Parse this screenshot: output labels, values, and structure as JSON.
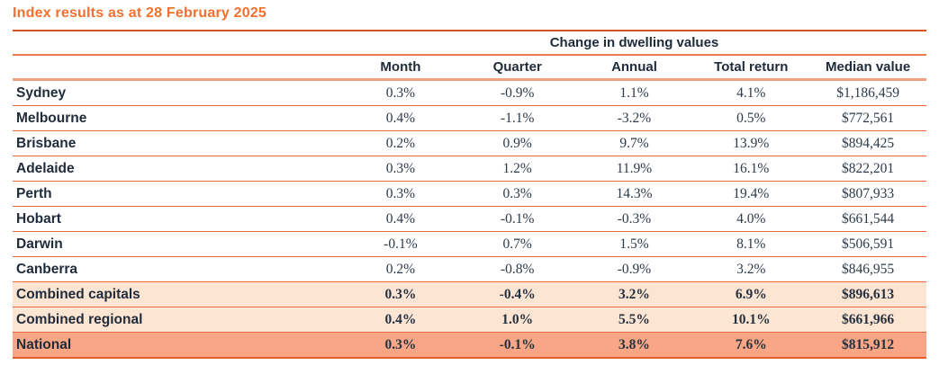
{
  "title": "Index results as at 28 February 2025",
  "colors": {
    "accent_orange": "#f4702f",
    "rule_dark_orange": "#d4531e",
    "rule_thin_orange": "#e7693b",
    "rule_salmon": "#f1a07f",
    "row_highlight_light": "#fde5d3",
    "row_highlight_strong": "#f8a685",
    "text_navy": "#1f2b3a",
    "text_value": "#2e3a48"
  },
  "chart_data": {
    "type": "table",
    "title": "Index results as at 28 February 2025",
    "group_header": "Change in dwelling values",
    "columns": [
      "Month",
      "Quarter",
      "Annual",
      "Total return",
      "Median value"
    ],
    "rows": [
      {
        "label": "Sydney",
        "values": [
          "0.3%",
          "-0.9%",
          "1.1%",
          "4.1%",
          "$1,186,459"
        ],
        "highlight": "none"
      },
      {
        "label": "Melbourne",
        "values": [
          "0.4%",
          "-1.1%",
          "-3.2%",
          "0.5%",
          "$772,561"
        ],
        "highlight": "none"
      },
      {
        "label": "Brisbane",
        "values": [
          "0.2%",
          "0.9%",
          "9.7%",
          "13.9%",
          "$894,425"
        ],
        "highlight": "none"
      },
      {
        "label": "Adelaide",
        "values": [
          "0.3%",
          "1.2%",
          "11.9%",
          "16.1%",
          "$822,201"
        ],
        "highlight": "none"
      },
      {
        "label": "Perth",
        "values": [
          "0.3%",
          "0.3%",
          "14.3%",
          "19.4%",
          "$807,933"
        ],
        "highlight": "none"
      },
      {
        "label": "Hobart",
        "values": [
          "0.4%",
          "-0.1%",
          "-0.3%",
          "4.0%",
          "$661,544"
        ],
        "highlight": "none"
      },
      {
        "label": "Darwin",
        "values": [
          "-0.1%",
          "0.7%",
          "1.5%",
          "8.1%",
          "$506,591"
        ],
        "highlight": "none"
      },
      {
        "label": "Canberra",
        "values": [
          "0.2%",
          "-0.8%",
          "-0.9%",
          "3.2%",
          "$846,955"
        ],
        "highlight": "none"
      },
      {
        "label": "Combined capitals",
        "values": [
          "0.3%",
          "-0.4%",
          "3.2%",
          "6.9%",
          "$896,613"
        ],
        "highlight": "light"
      },
      {
        "label": "Combined regional",
        "values": [
          "0.4%",
          "1.0%",
          "5.5%",
          "10.1%",
          "$661,966"
        ],
        "highlight": "light"
      },
      {
        "label": "National",
        "values": [
          "0.3%",
          "-0.1%",
          "3.8%",
          "7.6%",
          "$815,912"
        ],
        "highlight": "strong"
      }
    ]
  }
}
